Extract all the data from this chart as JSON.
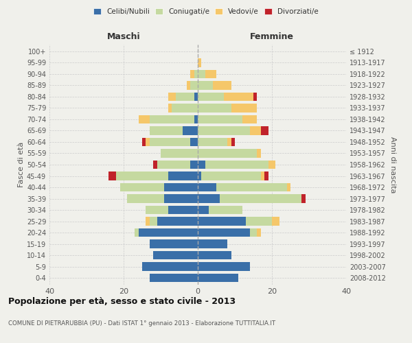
{
  "age_groups": [
    "0-4",
    "5-9",
    "10-14",
    "15-19",
    "20-24",
    "25-29",
    "30-34",
    "35-39",
    "40-44",
    "45-49",
    "50-54",
    "55-59",
    "60-64",
    "65-69",
    "70-74",
    "75-79",
    "80-84",
    "85-89",
    "90-94",
    "95-99",
    "100+"
  ],
  "birth_years": [
    "2008-2012",
    "2003-2007",
    "1998-2002",
    "1993-1997",
    "1988-1992",
    "1983-1987",
    "1978-1982",
    "1973-1977",
    "1968-1972",
    "1963-1967",
    "1958-1962",
    "1953-1957",
    "1948-1952",
    "1943-1947",
    "1938-1942",
    "1933-1937",
    "1928-1932",
    "1923-1927",
    "1918-1922",
    "1913-1917",
    "≤ 1912"
  ],
  "males": {
    "celibi": [
      13,
      15,
      12,
      13,
      16,
      11,
      8,
      9,
      9,
      8,
      2,
      0,
      2,
      4,
      1,
      0,
      1,
      0,
      0,
      0,
      0
    ],
    "coniugati": [
      0,
      0,
      0,
      0,
      1,
      2,
      6,
      10,
      12,
      14,
      9,
      10,
      11,
      9,
      12,
      7,
      5,
      2,
      1,
      0,
      0
    ],
    "vedovi": [
      0,
      0,
      0,
      0,
      0,
      1,
      0,
      0,
      0,
      0,
      0,
      0,
      1,
      0,
      3,
      1,
      2,
      1,
      1,
      0,
      0
    ],
    "divorziati": [
      0,
      0,
      0,
      0,
      0,
      0,
      0,
      0,
      0,
      2,
      1,
      0,
      1,
      0,
      0,
      0,
      0,
      0,
      0,
      0,
      0
    ]
  },
  "females": {
    "nubili": [
      11,
      14,
      9,
      8,
      14,
      13,
      3,
      6,
      5,
      1,
      2,
      0,
      0,
      0,
      0,
      0,
      0,
      0,
      0,
      0,
      0
    ],
    "coniugate": [
      0,
      0,
      0,
      0,
      2,
      7,
      9,
      22,
      19,
      16,
      17,
      16,
      8,
      14,
      12,
      9,
      7,
      4,
      2,
      0,
      0
    ],
    "vedove": [
      0,
      0,
      0,
      0,
      1,
      2,
      0,
      0,
      1,
      1,
      2,
      1,
      1,
      3,
      4,
      7,
      8,
      5,
      3,
      1,
      0
    ],
    "divorziate": [
      0,
      0,
      0,
      0,
      0,
      0,
      0,
      1,
      0,
      1,
      0,
      0,
      1,
      2,
      0,
      0,
      1,
      0,
      0,
      0,
      0
    ]
  },
  "color_celibi": "#3a6fa8",
  "color_coniugati": "#c5d9a0",
  "color_vedovi": "#f5c76a",
  "color_divorziati": "#c0222a",
  "xlim": 40,
  "title": "Popolazione per età, sesso e stato civile - 2013",
  "subtitle": "COMUNE DI PIETRARUBBIA (PU) - Dati ISTAT 1° gennaio 2013 - Elaborazione TUTTITALIA.IT",
  "ylabel_left": "Fasce di età",
  "ylabel_right": "Anni di nascita",
  "xlabel_left": "Maschi",
  "xlabel_right": "Femmine",
  "bg_color": "#f0f0eb",
  "grid_color": "#cccccc"
}
